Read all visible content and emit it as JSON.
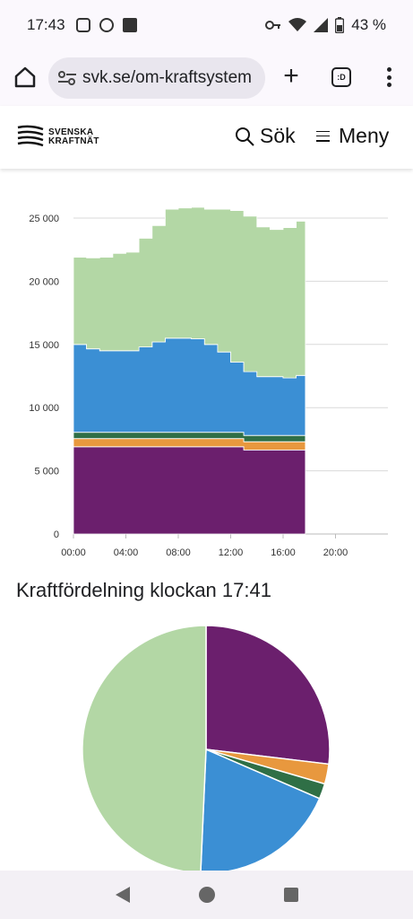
{
  "status": {
    "time": "17:43",
    "battery": "43 %",
    "app_icons": [
      "instagram-icon",
      "sync-icon",
      "linkedin-icon"
    ],
    "system_icons": [
      "key-icon",
      "wifi-icon",
      "signal-icon",
      "battery-icon"
    ]
  },
  "browser": {
    "url": "svk.se/om-kraftsystem",
    "tab_label": ":D"
  },
  "site": {
    "logo_line1": "SVENSKA",
    "logo_line2": "KRAFTNÄT",
    "search_label": "Sök",
    "menu_label": "Meny"
  },
  "pie_title": "Kraftfördelning klockan 17:41",
  "chart_data": [
    {
      "type": "area",
      "stacked": true,
      "x_ticks": [
        "00:00",
        "04:00",
        "08:00",
        "12:00",
        "16:00",
        "20:00"
      ],
      "x_range_hours": [
        0,
        24
      ],
      "y_ticks": [
        "0",
        "5 000",
        "10 000",
        "15 000",
        "20 000",
        "25 000"
      ],
      "ylim": [
        0,
        25000
      ],
      "grid": true,
      "x_hours": [
        0,
        1,
        2,
        3,
        4,
        5,
        6,
        7,
        8,
        9,
        10,
        11,
        12,
        13,
        14,
        15,
        16,
        17,
        17.7
      ],
      "series": [
        {
          "color": "#6b1f6d",
          "values": [
            6900,
            6900,
            6900,
            6900,
            6900,
            6900,
            6900,
            6900,
            6900,
            6900,
            6900,
            6900,
            6900,
            6650,
            6650,
            6650,
            6650,
            6650,
            6650
          ]
        },
        {
          "color": "#e8983e",
          "values": [
            650,
            650,
            650,
            650,
            650,
            650,
            650,
            650,
            650,
            650,
            650,
            650,
            650,
            650,
            650,
            650,
            650,
            650,
            650
          ]
        },
        {
          "color": "#2f6f46",
          "values": [
            500,
            500,
            500,
            500,
            500,
            500,
            500,
            500,
            500,
            500,
            500,
            500,
            500,
            500,
            500,
            500,
            500,
            500,
            500
          ]
        },
        {
          "color": "#3b8fd4",
          "values": [
            6950,
            6600,
            6450,
            6450,
            6450,
            6750,
            7150,
            7450,
            7450,
            7400,
            6950,
            6350,
            5550,
            5050,
            4650,
            4650,
            4550,
            4750,
            4750
          ]
        },
        {
          "color": "#b3d7a5",
          "values": [
            6900,
            7200,
            7400,
            7700,
            7800,
            8600,
            9200,
            10200,
            10300,
            10400,
            10700,
            11300,
            12000,
            12300,
            11850,
            11650,
            11900,
            12200,
            12200
          ]
        }
      ]
    },
    {
      "type": "pie",
      "start": "12 o'clock, clockwise",
      "slices": [
        {
          "color": "#6b1f6d",
          "value": 26.9
        },
        {
          "color": "#e8983e",
          "value": 2.6
        },
        {
          "color": "#2f6f46",
          "value": 2.0
        },
        {
          "color": "#3b8fd4",
          "value": 19.2
        },
        {
          "color": "#b3d7a5",
          "value": 49.3
        }
      ]
    }
  ]
}
